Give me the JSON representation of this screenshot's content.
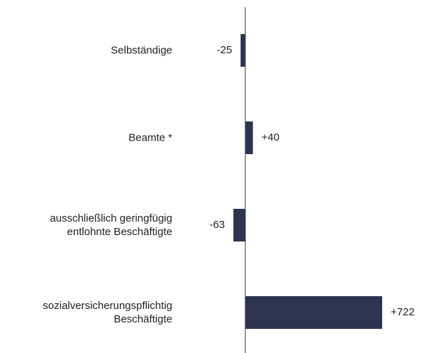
{
  "chart_data": {
    "type": "bar",
    "orientation": "horizontal",
    "categories": [
      "Selbständige",
      "Beamte *",
      "ausschließlich geringfügig\nentlohnte Beschäftigte",
      "sozialversicherungspflichtig\nBeschäftigte"
    ],
    "values": [
      -25,
      40,
      -63,
      722
    ],
    "value_labels": [
      "-25",
      "+40",
      "-63",
      "+722"
    ],
    "color": "#2c3450"
  }
}
